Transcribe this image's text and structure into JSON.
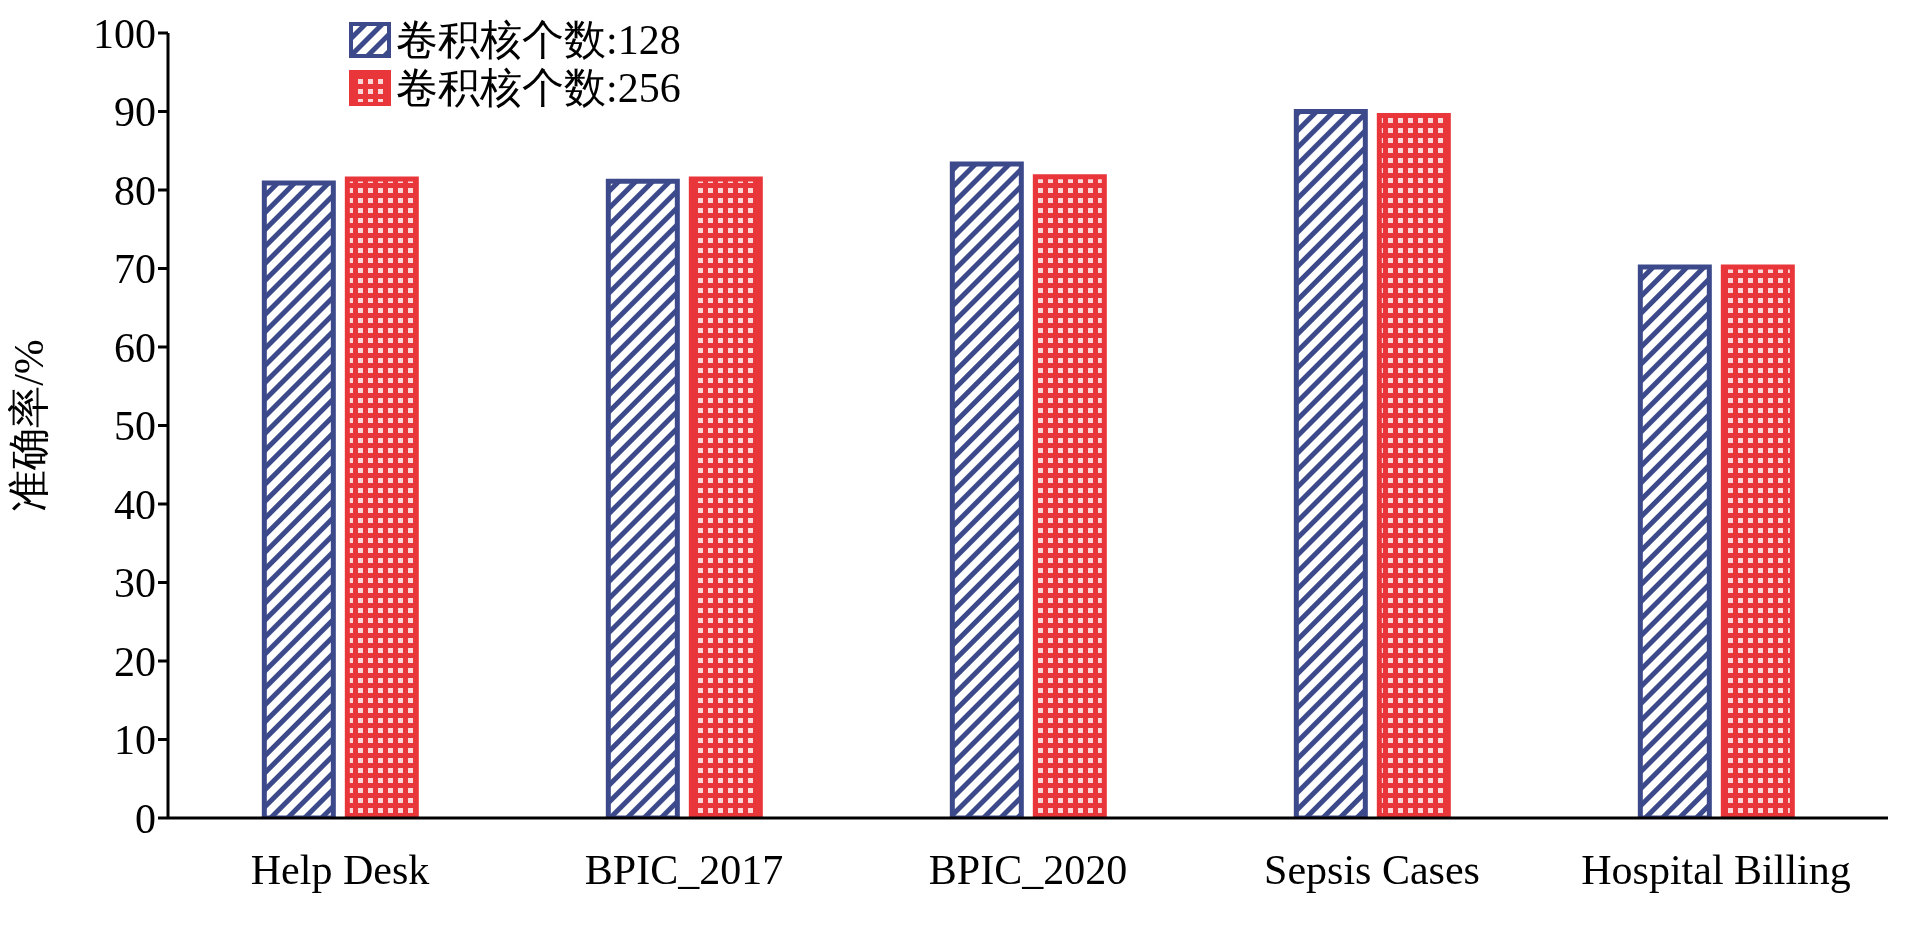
{
  "chart_data": {
    "type": "bar",
    "ylabel": "准确率/%",
    "categories": [
      "Help Desk",
      "BPIC_2017",
      "BPIC_2020",
      "Sepsis Cases",
      "Hospital Billing"
    ],
    "series": [
      {
        "name": "卷积核个数:128",
        "color": "#3c4a8c",
        "values": [
          80.9,
          81.1,
          83.3,
          90.0,
          70.2
        ]
      },
      {
        "name": "卷积核个数:256",
        "color": "#e8363a",
        "values": [
          81.4,
          81.4,
          81.7,
          89.5,
          70.2
        ]
      }
    ],
    "ylim": [
      0,
      100
    ],
    "yticks": [
      0,
      10,
      20,
      30,
      40,
      50,
      60,
      70,
      80,
      90,
      100
    ],
    "grid": false,
    "legend": "top left"
  }
}
